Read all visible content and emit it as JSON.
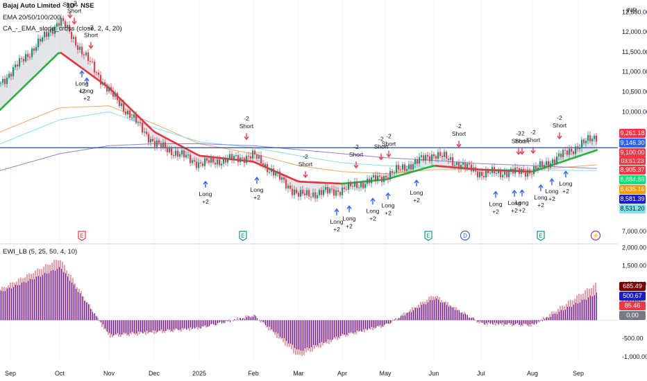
{
  "header": {
    "symbol_line": "Bajaj Auto Limited · 1D · NSE",
    "ema_line": "EMA 20/50/100/200",
    "ca_line": "CA_-_EMA_slope_cross (close, 2, 4, 20)",
    "ewi_line": "EWI_LB (5, 25, 50, 4, 10)",
    "currency": "INR"
  },
  "colors": {
    "up": "#089981",
    "down": "#f23645",
    "ema20_bull": "#26b33a",
    "ema20_bear": "#e8323c",
    "ema50": "#f2a75c",
    "ema100": "#7fe3ec",
    "ema200": "#8a7fd6",
    "hline": "#2948a6",
    "osc_blue": "#2a3bd6",
    "osc_red": "#e0364c"
  },
  "price_axis": {
    "ticks": [
      "12,500.00",
      "12,000.00",
      "11,500.00",
      "11,000.00",
      "10,500.00",
      "10,000.00",
      "7,000.00"
    ],
    "labels": {
      "high": "9,261.18",
      "ema200": "9,146.30",
      "last": "9,100.00",
      "countdown": "03:51:23",
      "ema20": "8,905.37",
      "ema_green": "8,884.89",
      "ema50": "8,635.16",
      "ema_blue": "8,581.39",
      "ema100": "8,531.20"
    }
  },
  "osc_axis": {
    "ticks": [
      "2,000.00",
      "1,500.00",
      "1,000.00",
      "500.00",
      "-500.00",
      "-1,000.00"
    ],
    "labels": {
      "v1": "685.49",
      "v2": "500.67",
      "v3": "85.46",
      "v4": "0.00"
    }
  },
  "time_axis": [
    "Sep",
    "Oct",
    "Nov",
    "Dec",
    "2025",
    "Feb",
    "Mar",
    "Apr",
    "May",
    "Jun",
    "Jul",
    "Aug",
    "Sep"
  ],
  "events": [
    {
      "letter": "E",
      "color": "#f23645"
    },
    {
      "letter": "E",
      "color": "#089981"
    },
    {
      "letter": "E",
      "color": "#089981"
    },
    {
      "letter": "D",
      "color": "#2962ff"
    },
    {
      "letter": "E",
      "color": "#089981"
    },
    {
      "letter": "⚡",
      "color": "#9c27b0"
    }
  ],
  "signals": [
    {
      "type": "short",
      "lines": [
        "-2",
        "Short"
      ]
    },
    {
      "type": "short",
      "lines": [
        "-2",
        "Short"
      ]
    },
    {
      "type": "long",
      "lines": [
        "Long",
        "+2"
      ]
    },
    {
      "type": "long",
      "lines": [
        "Long",
        "+2"
      ]
    },
    {
      "type": "short",
      "lines": [
        "-2",
        "Short"
      ]
    },
    {
      "type": "long",
      "lines": [
        "Long",
        "+2"
      ]
    },
    {
      "type": "short",
      "lines": [
        "-2",
        "Short"
      ]
    },
    {
      "type": "long",
      "lines": [
        "Long",
        "+2"
      ]
    },
    {
      "type": "short",
      "lines": [
        "-2",
        "Short"
      ]
    },
    {
      "type": "long",
      "lines": [
        "Long",
        "+2"
      ]
    },
    {
      "type": "long",
      "lines": [
        "Long",
        "+2"
      ]
    },
    {
      "type": "short",
      "lines": [
        "-2",
        "Short"
      ]
    },
    {
      "type": "short",
      "lines": [
        "-2",
        "Short"
      ]
    },
    {
      "type": "long",
      "lines": [
        "Long",
        "+2"
      ]
    },
    {
      "type": "long",
      "lines": [
        "Long",
        "+2"
      ]
    },
    {
      "type": "short",
      "lines": [
        "-2",
        "Short"
      ]
    },
    {
      "type": "long",
      "lines": [
        "Long",
        "+2"
      ]
    },
    {
      "type": "short",
      "lines": [
        "-2",
        "Short"
      ]
    },
    {
      "type": "long",
      "lines": [
        "Long",
        "+2"
      ]
    },
    {
      "type": "long",
      "lines": [
        "Long",
        "+2"
      ]
    },
    {
      "type": "short",
      "lines": [
        "-2",
        "Short"
      ]
    },
    {
      "type": "short",
      "lines": [
        "-2",
        "Short"
      ]
    },
    {
      "type": "long",
      "lines": [
        "Long",
        "+2"
      ]
    },
    {
      "type": "long",
      "lines": [
        "Long",
        "+2"
      ]
    },
    {
      "type": "long",
      "lines": [
        "Long",
        "+2"
      ]
    },
    {
      "type": "short",
      "lines": [
        "-2",
        "Short"
      ]
    },
    {
      "type": "long",
      "lines": [
        "Long",
        "+2"
      ]
    },
    {
      "type": "short",
      "lines": [
        "-2",
        "Short"
      ]
    }
  ],
  "chart_data": [
    {
      "type": "line",
      "ylim": [
        6900,
        12800
      ],
      "x": [
        "Sep",
        "Oct",
        "Nov",
        "Dec",
        "2025",
        "Feb",
        "Mar",
        "Apr",
        "May",
        "Jun",
        "Jul",
        "Aug",
        "Sep"
      ],
      "series": [
        {
          "values": [
            11000,
            12300,
            10500,
            9200,
            8700,
            8900,
            7900,
            8050,
            8400,
            8950,
            8450,
            8520,
            9150
          ]
        },
        {
          "values": [
            10300,
            11500,
            10600,
            9500,
            8900,
            8750,
            8250,
            8200,
            8300,
            8650,
            8550,
            8500,
            8884
          ]
        },
        {
          "values": [
            9600,
            10100,
            10150,
            9700,
            9200,
            8950,
            8650,
            8500,
            8450,
            8550,
            8550,
            8550,
            8635
          ]
        },
        {
          "values": [
            9300,
            9800,
            10000,
            9600,
            9250,
            9100,
            8900,
            8720,
            8650,
            8600,
            8560,
            8540,
            8531
          ]
        },
        {
          "values": [
            8600,
            8950,
            9150,
            9200,
            9200,
            9150,
            9050,
            8950,
            8850,
            8780,
            8700,
            8650,
            8600
          ]
        }
      ],
      "hline": 9100
    },
    {
      "type": "bar",
      "ylim": [
        -1100,
        2100
      ],
      "x": [
        "Sep",
        "Oct",
        "Nov",
        "Dec",
        "2025",
        "Feb",
        "Mar",
        "Apr",
        "May",
        "Jun",
        "Jul",
        "Aug",
        "Sep"
      ],
      "series": [
        {
          "values": [
            1000,
            1700,
            -450,
            -350,
            -220,
            150,
            -1000,
            -450,
            -150,
            700,
            -100,
            -150,
            680
          ]
        },
        {
          "values": [
            900,
            1450,
            -400,
            -300,
            -200,
            120,
            -850,
            -400,
            -120,
            600,
            -80,
            -120,
            500
          ]
        }
      ]
    }
  ]
}
